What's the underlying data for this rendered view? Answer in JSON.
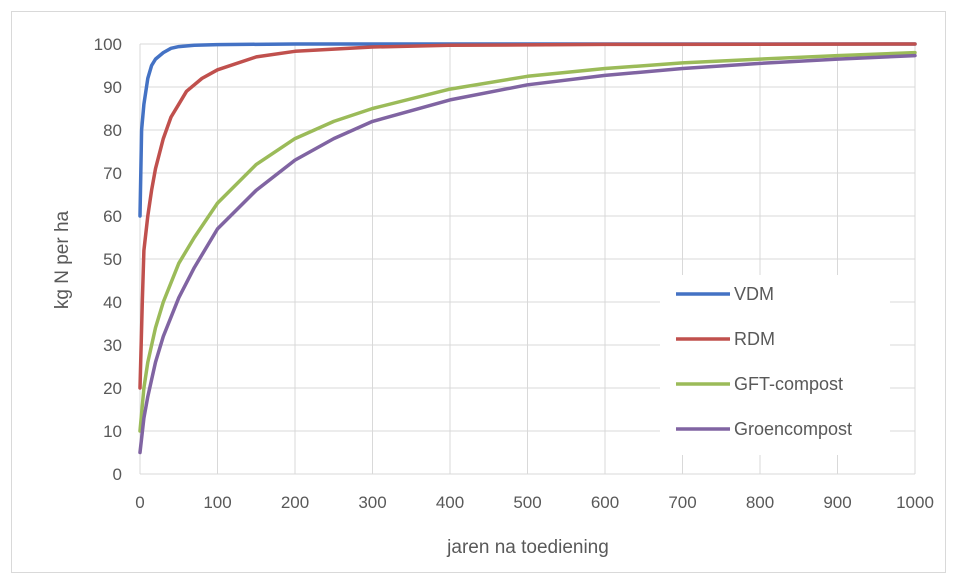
{
  "chart_data": {
    "type": "line",
    "title": "",
    "xlabel": "jaren na toediening",
    "ylabel": "kg N per ha",
    "xlim": [
      0,
      1000
    ],
    "ylim": [
      0,
      100
    ],
    "x_ticks": [
      "0",
      "100",
      "200",
      "300",
      "400",
      "500",
      "600",
      "700",
      "800",
      "900",
      "1000"
    ],
    "y_ticks": [
      "0",
      "10",
      "20",
      "30",
      "40",
      "50",
      "60",
      "70",
      "80",
      "90",
      "100"
    ],
    "grid": true,
    "legend_position": "center-right",
    "series": [
      {
        "name": "VDM",
        "color": "#4472c4",
        "points": [
          [
            0,
            60
          ],
          [
            2,
            80
          ],
          [
            5,
            86
          ],
          [
            10,
            92
          ],
          [
            15,
            95
          ],
          [
            20,
            96.5
          ],
          [
            30,
            98
          ],
          [
            40,
            99
          ],
          [
            50,
            99.4
          ],
          [
            70,
            99.7
          ],
          [
            100,
            99.85
          ],
          [
            200,
            100
          ],
          [
            500,
            100
          ],
          [
            1000,
            100
          ]
        ]
      },
      {
        "name": "RDM",
        "color": "#c0504d",
        "points": [
          [
            0,
            20
          ],
          [
            3,
            40
          ],
          [
            5,
            52
          ],
          [
            10,
            60
          ],
          [
            15,
            66
          ],
          [
            20,
            71
          ],
          [
            30,
            78
          ],
          [
            40,
            83
          ],
          [
            50,
            86
          ],
          [
            60,
            89
          ],
          [
            80,
            92
          ],
          [
            100,
            94
          ],
          [
            150,
            97
          ],
          [
            200,
            98.3
          ],
          [
            300,
            99.3
          ],
          [
            400,
            99.7
          ],
          [
            600,
            99.9
          ],
          [
            1000,
            100
          ]
        ]
      },
      {
        "name": "GFT-compost",
        "color": "#9bbb59",
        "points": [
          [
            0,
            10
          ],
          [
            5,
            20
          ],
          [
            10,
            26
          ],
          [
            20,
            34
          ],
          [
            30,
            40
          ],
          [
            50,
            49
          ],
          [
            70,
            55
          ],
          [
            100,
            63
          ],
          [
            150,
            72
          ],
          [
            200,
            78
          ],
          [
            250,
            82
          ],
          [
            300,
            85
          ],
          [
            400,
            89.5
          ],
          [
            500,
            92.5
          ],
          [
            600,
            94.3
          ],
          [
            700,
            95.6
          ],
          [
            800,
            96.5
          ],
          [
            900,
            97.3
          ],
          [
            1000,
            98
          ]
        ]
      },
      {
        "name": "Groencompost",
        "color": "#8064a2",
        "points": [
          [
            0,
            5
          ],
          [
            5,
            13
          ],
          [
            10,
            18
          ],
          [
            20,
            26
          ],
          [
            30,
            32
          ],
          [
            50,
            41
          ],
          [
            70,
            48
          ],
          [
            100,
            57
          ],
          [
            150,
            66
          ],
          [
            200,
            73
          ],
          [
            250,
            78
          ],
          [
            300,
            82
          ],
          [
            400,
            87
          ],
          [
            500,
            90.5
          ],
          [
            600,
            92.7
          ],
          [
            700,
            94.3
          ],
          [
            800,
            95.5
          ],
          [
            900,
            96.5
          ],
          [
            1000,
            97.3
          ]
        ]
      }
    ]
  }
}
